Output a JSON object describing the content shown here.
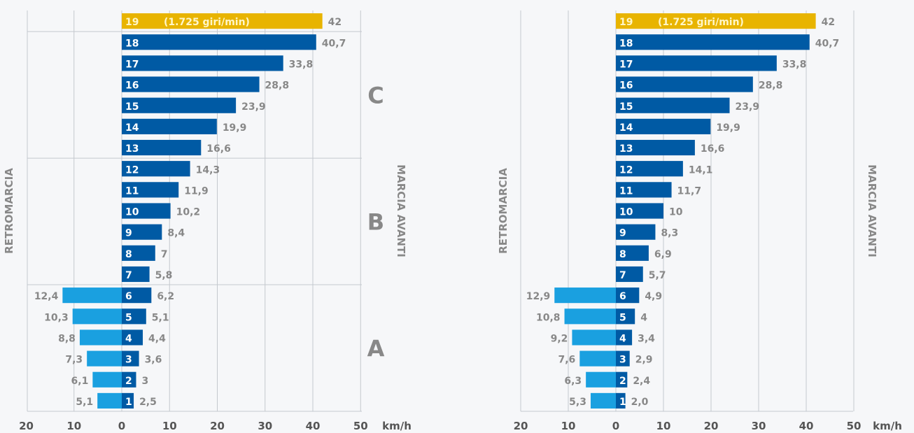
{
  "colors": {
    "forward": "#005aa4",
    "reverse": "#1aa0e0",
    "highlight": "#e8b400",
    "grid": "#c4c8ce",
    "label_gray": "#888888",
    "dark_gray": "#555555",
    "gear_text": "#ffffff",
    "highlight_text": "#fff6c8",
    "background": "#f6f7f9"
  },
  "chart_data": [
    {
      "type": "bar",
      "orientation": "horizontal",
      "x_ticks": [
        "20",
        "10",
        "0",
        "10",
        "20",
        "30",
        "40",
        "50"
      ],
      "x_unit": "km/h",
      "xlim": [
        -20,
        50
      ],
      "left_axis_label": "RETROMARCIA",
      "right_axis_label": "MARCIA AVANTI",
      "highlight_gear": "19",
      "highlight_note": "(1.725 giri/min)",
      "groups": [
        {
          "label": "C",
          "gears": [
            "13",
            "18"
          ]
        },
        {
          "label": "B",
          "gears": [
            "7",
            "12"
          ]
        },
        {
          "label": "A",
          "gears": [
            "1",
            "6"
          ]
        }
      ],
      "gears": [
        "19",
        "18",
        "17",
        "16",
        "15",
        "14",
        "13",
        "12",
        "11",
        "10",
        "9",
        "8",
        "7",
        "6",
        "5",
        "4",
        "3",
        "2",
        "1"
      ],
      "forward": [
        42,
        40.7,
        33.8,
        28.8,
        23.9,
        19.9,
        16.6,
        14.3,
        11.9,
        10.2,
        8.4,
        7,
        5.8,
        6.2,
        5.1,
        4.4,
        3.6,
        3,
        2.5
      ],
      "forward_labels": [
        "42",
        "40,7",
        "33,8",
        "28,8",
        "23,9",
        "19,9",
        "16,6",
        "14,3",
        "11,9",
        "10,2",
        "8,4",
        "7",
        "5,8",
        "6,2",
        "5,1",
        "4,4",
        "3,6",
        "3",
        "2,5"
      ],
      "reverse": [
        null,
        null,
        null,
        null,
        null,
        null,
        null,
        null,
        null,
        null,
        null,
        null,
        null,
        12.4,
        10.3,
        8.8,
        7.3,
        6.1,
        5.1
      ],
      "reverse_labels": [
        "",
        "",
        "",
        "",
        "",
        "",
        "",
        "",
        "",
        "",
        "",
        "",
        "",
        "12,4",
        "10,3",
        "8,8",
        "7,3",
        "6,1",
        "5,1"
      ]
    },
    {
      "type": "bar",
      "orientation": "horizontal",
      "x_ticks": [
        "20",
        "10",
        "0",
        "10",
        "20",
        "30",
        "40",
        "50"
      ],
      "x_unit": "km/h",
      "xlim": [
        -20,
        50
      ],
      "left_axis_label": "RETROMARCIA",
      "right_axis_label": "MARCIA AVANTI",
      "highlight_gear": "19",
      "highlight_note": "(1.725 giri/min)",
      "groups": [],
      "gears": [
        "19",
        "18",
        "17",
        "16",
        "15",
        "14",
        "13",
        "12",
        "11",
        "10",
        "9",
        "8",
        "7",
        "6",
        "5",
        "4",
        "3",
        "2",
        "1"
      ],
      "forward": [
        42,
        40.7,
        33.8,
        28.8,
        23.9,
        19.9,
        16.6,
        14.1,
        11.7,
        10,
        8.3,
        6.9,
        5.7,
        4.9,
        4,
        3.4,
        2.9,
        2.4,
        2.0
      ],
      "forward_labels": [
        "42",
        "40,7",
        "33,8",
        "28,8",
        "23,9",
        "19,9",
        "16,6",
        "14,1",
        "11,7",
        "10",
        "8,3",
        "6,9",
        "5,7",
        "4,9",
        "4",
        "3,4",
        "2,9",
        "2,4",
        "2,0"
      ],
      "reverse": [
        null,
        null,
        null,
        null,
        null,
        null,
        null,
        null,
        null,
        null,
        null,
        null,
        null,
        12.9,
        10.8,
        9.2,
        7.6,
        6.3,
        5.3
      ],
      "reverse_labels": [
        "",
        "",
        "",
        "",
        "",
        "",
        "",
        "",
        "",
        "",
        "",
        "",
        "",
        "12,9",
        "10,8",
        "9,2",
        "7,6",
        "6,3",
        "5,3"
      ]
    }
  ]
}
